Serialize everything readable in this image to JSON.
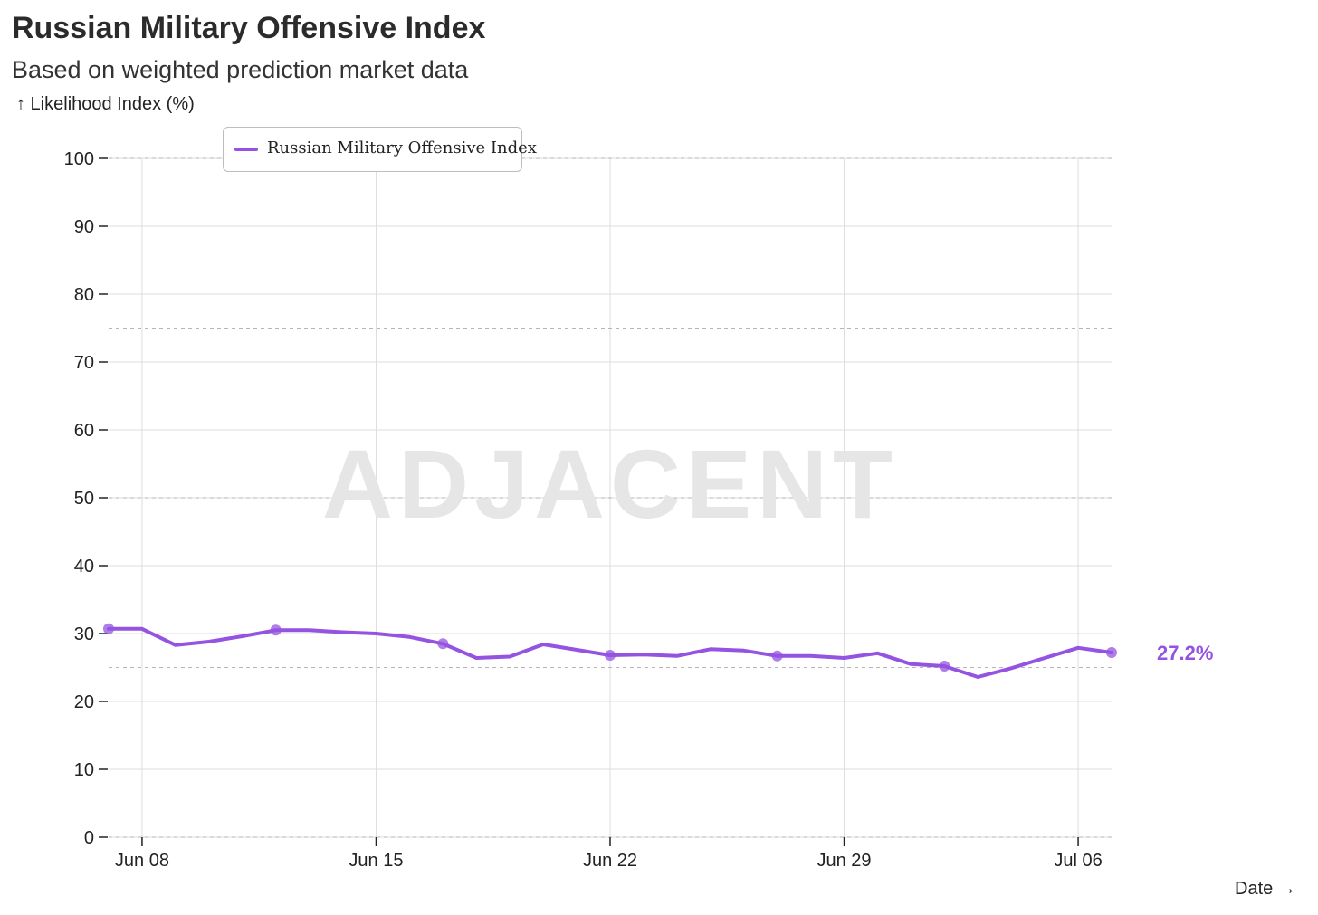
{
  "colors": {
    "series": "#9453e0",
    "watermark": "#e6e6e6",
    "grid": "#dddddd",
    "threshold": "#b5b5b5"
  },
  "header": {
    "title": "Russian Military Offensive Index",
    "subtitle": "Based on weighted prediction market data",
    "y_label": "↑ Likelihood Index (%)",
    "x_label": "Date →"
  },
  "watermark": "ADJACENT",
  "chart_data": {
    "type": "line",
    "title": "Russian Military Offensive Index",
    "subtitle": "Based on weighted prediction market data",
    "ylabel": "↑ Likelihood Index (%)",
    "xlabel": "Date →",
    "ylim": [
      0,
      100
    ],
    "xlim": [
      "2025-06-07",
      "2025-07-07"
    ],
    "y_ticks": [
      0,
      10,
      20,
      30,
      40,
      50,
      60,
      70,
      80,
      90,
      100
    ],
    "x_ticks": [
      {
        "date": "2025-06-08",
        "label": "Jun 08"
      },
      {
        "date": "2025-06-15",
        "label": "Jun 15"
      },
      {
        "date": "2025-06-22",
        "label": "Jun 22"
      },
      {
        "date": "2025-06-29",
        "label": "Jun 29"
      },
      {
        "date": "2025-07-06",
        "label": "Jul 06"
      }
    ],
    "dashed_reference_lines": [
      25,
      50,
      75,
      100,
      0
    ],
    "grid": true,
    "legend": {
      "position": "top-left",
      "entries": [
        "Russian Military Offensive Index"
      ]
    },
    "series": [
      {
        "name": "Russian Military Offensive Index",
        "x": [
          "2025-06-07",
          "2025-06-08",
          "2025-06-09",
          "2025-06-10",
          "2025-06-11",
          "2025-06-12",
          "2025-06-13",
          "2025-06-14",
          "2025-06-15",
          "2025-06-16",
          "2025-06-17",
          "2025-06-18",
          "2025-06-19",
          "2025-06-20",
          "2025-06-21",
          "2025-06-22",
          "2025-06-23",
          "2025-06-24",
          "2025-06-25",
          "2025-06-26",
          "2025-06-27",
          "2025-06-28",
          "2025-06-29",
          "2025-06-30",
          "2025-07-01",
          "2025-07-02",
          "2025-07-03",
          "2025-07-04",
          "2025-07-05",
          "2025-07-06",
          "2025-07-07"
        ],
        "y": [
          30.7,
          30.7,
          28.3,
          28.8,
          29.6,
          30.5,
          30.5,
          30.2,
          30.0,
          29.5,
          28.5,
          26.4,
          26.6,
          28.4,
          27.6,
          26.8,
          26.9,
          26.7,
          27.7,
          27.5,
          26.7,
          26.7,
          26.4,
          27.1,
          25.5,
          25.2,
          23.6,
          24.9,
          26.4,
          27.9,
          27.2
        ],
        "marked_points": [
          "2025-06-07",
          "2025-06-12",
          "2025-06-17",
          "2025-06-22",
          "2025-06-27",
          "2025-07-02",
          "2025-07-07"
        ]
      }
    ],
    "annotations": [
      {
        "text": "27.2%",
        "x": "2025-07-07",
        "y": 27.2
      }
    ]
  }
}
